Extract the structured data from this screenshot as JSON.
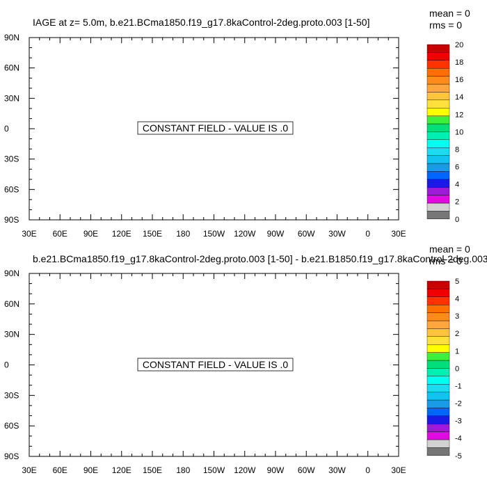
{
  "panels": [
    {
      "title": "IAGE at z=   5.0m, b.e21.BCma1850.f19_g17.8kaControl-2deg.proto.003 [1-50]",
      "stats": {
        "mean": "mean = 0",
        "rms": "rms = 0"
      },
      "message": "CONSTANT FIELD - VALUE IS .0",
      "colorbar": {
        "labels": [
          "0",
          "2",
          "4",
          "6",
          "8",
          "10",
          "12",
          "14",
          "16",
          "18",
          "20"
        ]
      }
    },
    {
      "title": "b.e21.BCma1850.f19_g17.8kaControl-2deg.proto.003 [1-50] - b.e21.B1850.f19_g17.8kaControl-2deg.003",
      "stats": {
        "mean": "mean = 0",
        "rms": "rms = 0"
      },
      "message": "CONSTANT FIELD - VALUE IS .0",
      "colorbar": {
        "labels": [
          "-5",
          "-4",
          "-3",
          "-2",
          "-1",
          "0",
          "1",
          "2",
          "3",
          "4",
          "5"
        ]
      }
    }
  ],
  "chart_data": [
    {
      "type": "heatmap",
      "title": "IAGE at z=   5.0m, b.e21.BCma1850.f19_g17.8kaControl-2deg.proto.003 [1-50]",
      "xticks": [
        "30E",
        "60E",
        "90E",
        "120E",
        "150E",
        "180",
        "150W",
        "120W",
        "90W",
        "60W",
        "30W",
        "0",
        "30E"
      ],
      "yticks": [
        "90N",
        "60N",
        "30N",
        "0",
        "30S",
        "60S",
        "90S"
      ],
      "xlim": [
        30,
        390
      ],
      "ylim": [
        -90,
        90
      ],
      "field_value": 0.0,
      "mean": 0,
      "rms": 0,
      "colorbar_range": [
        0,
        20
      ]
    },
    {
      "type": "heatmap",
      "title": "b.e21.BCma1850.f19_g17.8kaControl-2deg.proto.003 [1-50] - b.e21.B1850.f19_g17.8kaControl-2deg.003",
      "xticks": [
        "30E",
        "60E",
        "90E",
        "120E",
        "150E",
        "180",
        "150W",
        "120W",
        "90W",
        "60W",
        "30W",
        "0",
        "30E"
      ],
      "yticks": [
        "90N",
        "60N",
        "30N",
        "0",
        "30S",
        "60S",
        "90S"
      ],
      "xlim": [
        30,
        390
      ],
      "ylim": [
        -90,
        90
      ],
      "field_value": 0.0,
      "mean": 0,
      "rms": 0,
      "colorbar_range": [
        -5,
        5
      ]
    }
  ],
  "colorbar_colors": [
    "#777777",
    "#d2d2d2",
    "#e10ae1",
    "#9e1ad6",
    "#1a1ae6",
    "#0066ff",
    "#1a9be6",
    "#10c3f0",
    "#19dcf0",
    "#00ffee",
    "#00f0b4",
    "#00e07a",
    "#3cf03c",
    "#ffff00",
    "#ffe03c",
    "#ffc33c",
    "#ffa73c",
    "#ff8c1a",
    "#ff7000",
    "#ff3300",
    "#f00000",
    "#c80000"
  ]
}
